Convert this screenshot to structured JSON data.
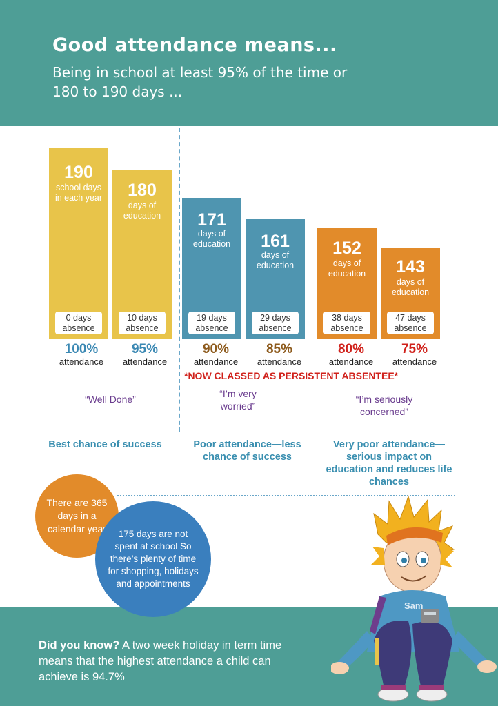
{
  "header": {
    "title": "Good attendance means...",
    "subtitle": "Being in school at least 95% of the time or 180 to 190 days ..."
  },
  "bars": [
    {
      "days": "190",
      "desc": "school days in each year",
      "absence": "0 days absence",
      "percent": "100%",
      "attendance": "attendance",
      "color": "#e8c44a"
    },
    {
      "days": "180",
      "desc": "days of education",
      "absence": "10 days absence",
      "percent": "95%",
      "attendance": "attendance",
      "color": "#e8c44a"
    },
    {
      "days": "171",
      "desc": "days of education",
      "absence": "19 days absence",
      "percent": "90%",
      "attendance": "attendance",
      "color": "#4f95b0"
    },
    {
      "days": "161",
      "desc": "days of education",
      "absence": "29 days absence",
      "percent": "85%",
      "attendance": "attendance",
      "color": "#4f95b0"
    },
    {
      "days": "152",
      "desc": "days of education",
      "absence": "38 days absence",
      "percent": "80%",
      "attendance": "attendance",
      "color": "#e28b2a"
    },
    {
      "days": "143",
      "desc": "days of education",
      "absence": "47 days absence",
      "percent": "75%",
      "attendance": "attendance",
      "color": "#e28b2a"
    }
  ],
  "persistent_note": "*NOW CLASSED AS PERSISTENT ABSENTEE*",
  "quotes": {
    "well_done": "“Well Done”",
    "worried": "“I’m very worried”",
    "concerned": "“I’m seriously concerned”"
  },
  "chances": {
    "best": "Best chance of success",
    "poor": "Poor attendance—less chance of success",
    "very_poor": "Very poor attendance—serious impact on education and reduces life chances"
  },
  "circles": {
    "year": "There are 365 days in a calendar year",
    "not_school": "175 days are not spent at school So there’s plenty of time for shopping, holidays and appointments"
  },
  "footer": {
    "lead": "Did you know?",
    "text": " A two week holiday in term time means that the highest attendance a child can achieve is 94.7%"
  },
  "character": {
    "name": "Sam"
  }
}
